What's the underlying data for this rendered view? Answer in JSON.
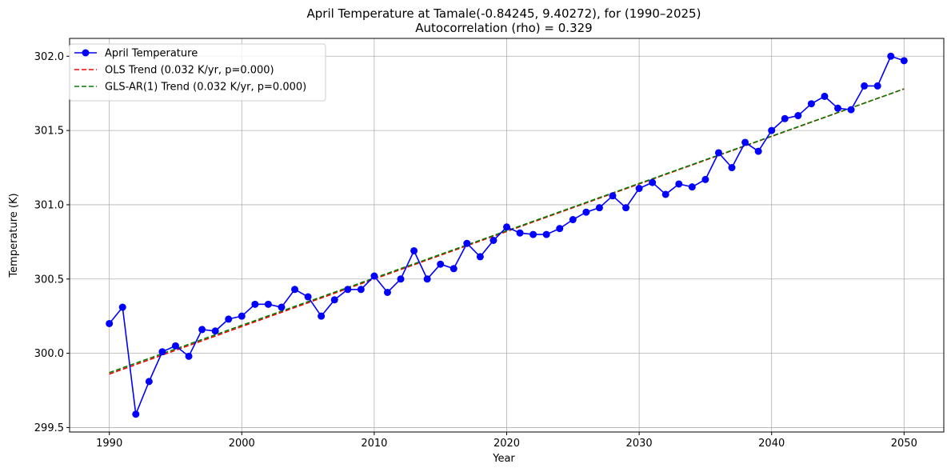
{
  "chart_data": {
    "type": "line",
    "title": "April Temperature at Tamale(-0.84245, 9.40272), for (1990–2025)",
    "subtitle": "Autocorrelation (rho) = 0.329",
    "xlabel": "Year",
    "ylabel": "Temperature (K)",
    "xlim": [
      1987,
      2053
    ],
    "ylim": [
      299.47,
      302.12
    ],
    "x_ticks": [
      1990,
      2000,
      2010,
      2020,
      2030,
      2040,
      2050
    ],
    "y_ticks": [
      299.5,
      300.0,
      300.5,
      301.0,
      301.5,
      302.0
    ],
    "x_tick_labels": [
      "1990",
      "2000",
      "2010",
      "2020",
      "2030",
      "2040",
      "2050"
    ],
    "y_tick_labels": [
      "299.5",
      "300.0",
      "300.5",
      "301.0",
      "301.5",
      "302.0"
    ],
    "grid": true,
    "legend_position": "top-left",
    "series": [
      {
        "name": "April Temperature",
        "style": "line-marker",
        "color": "#0000ff",
        "x": [
          1990,
          1991,
          1992,
          1993,
          1994,
          1995,
          1996,
          1997,
          1998,
          1999,
          2000,
          2001,
          2002,
          2003,
          2004,
          2005,
          2006,
          2007,
          2008,
          2009,
          2010,
          2011,
          2012,
          2013,
          2014,
          2015,
          2016,
          2017,
          2018,
          2019,
          2020,
          2021,
          2022,
          2023,
          2024,
          2025,
          2026,
          2027,
          2028,
          2029,
          2030,
          2031,
          2032,
          2033,
          2034,
          2035,
          2036,
          2037,
          2038,
          2039,
          2040,
          2041,
          2042,
          2043,
          2044,
          2045,
          2046,
          2047,
          2048,
          2049,
          2050
        ],
        "values": [
          300.2,
          300.31,
          299.59,
          299.81,
          300.01,
          300.05,
          299.98,
          300.16,
          300.15,
          300.23,
          300.25,
          300.33,
          300.33,
          300.31,
          300.43,
          300.38,
          300.25,
          300.36,
          300.43,
          300.43,
          300.52,
          300.41,
          300.5,
          300.69,
          300.5,
          300.6,
          300.57,
          300.74,
          300.65,
          300.76,
          300.85,
          300.81,
          300.8,
          300.8,
          300.84,
          300.9,
          300.95,
          300.98,
          301.06,
          300.98,
          301.11,
          301.15,
          301.07,
          301.14,
          301.12,
          301.17,
          301.35,
          301.25,
          301.42,
          301.36,
          301.5,
          301.58,
          301.6,
          301.68,
          301.73,
          301.65,
          301.64,
          301.8,
          301.8,
          302.0,
          301.97
        ]
      },
      {
        "name": "OLS Trend (0.032 K/yr, p=0.000)",
        "style": "dashed",
        "color": "#ff0000",
        "x": [
          1990,
          2050
        ],
        "values": [
          299.86,
          301.78
        ]
      },
      {
        "name": "GLS-AR(1) Trend (0.032 K/yr, p=0.000)",
        "style": "dashed",
        "color": "#007f00",
        "x": [
          1990,
          2050
        ],
        "values": [
          299.87,
          301.78
        ]
      }
    ]
  }
}
